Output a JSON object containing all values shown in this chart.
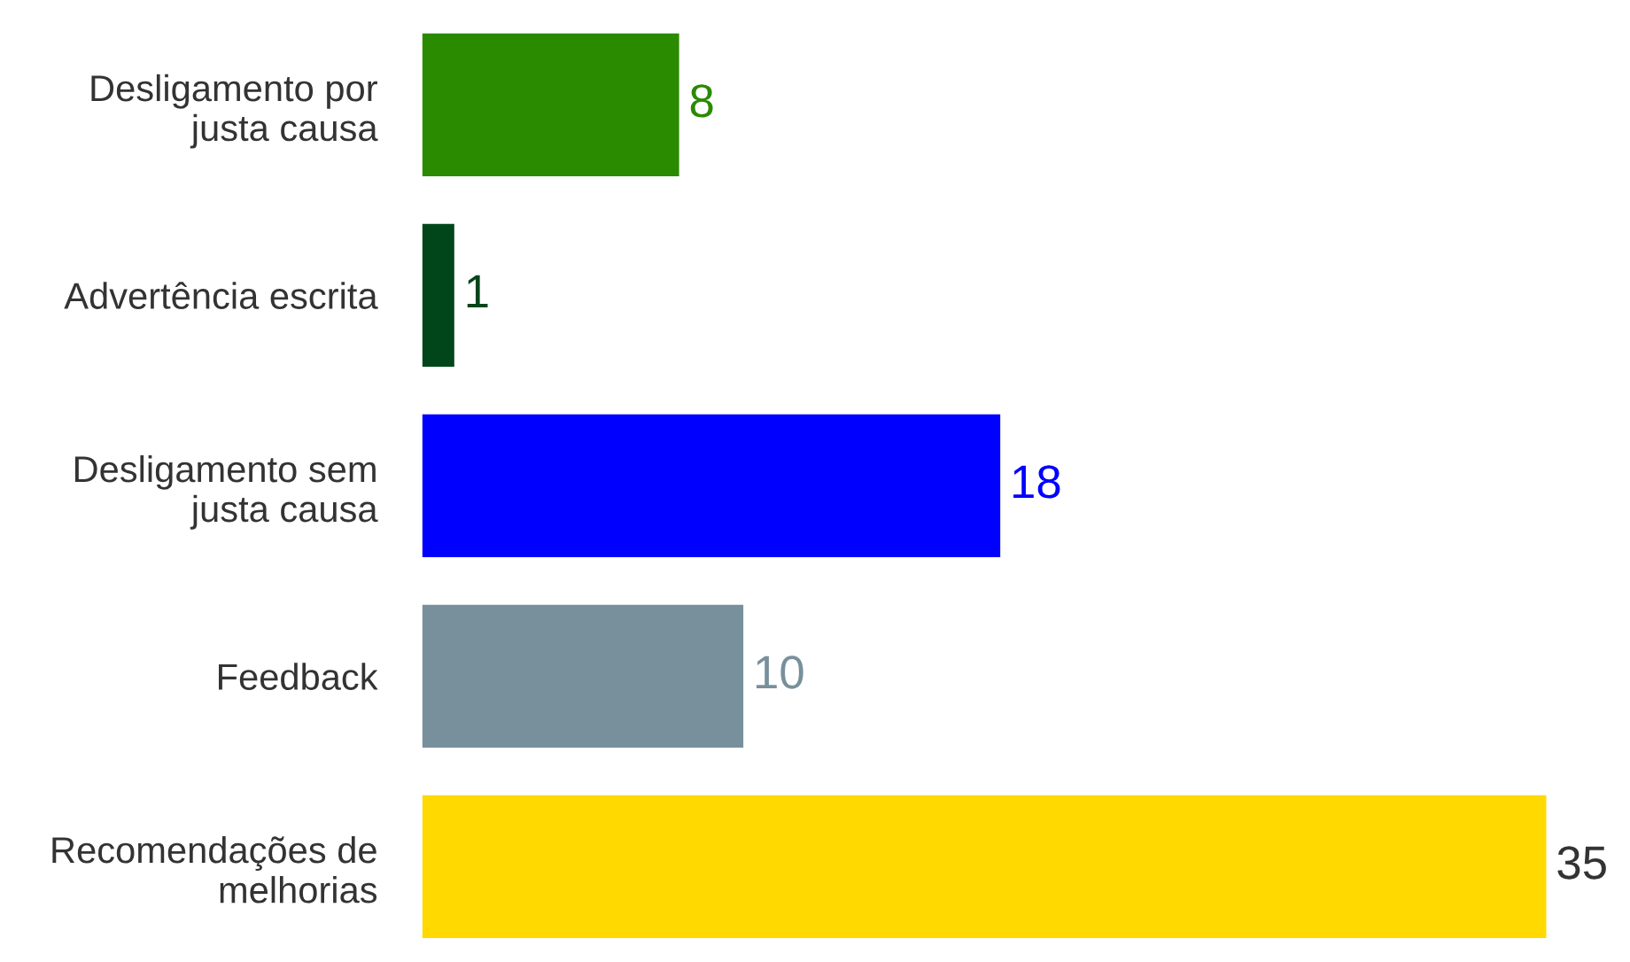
{
  "chart_data": {
    "type": "bar",
    "orientation": "horizontal",
    "categories": [
      "Desligamento por justa causa",
      "Advertência escrita",
      "Desligamento sem justa causa",
      "Feedback",
      "Recomendações de melhorias"
    ],
    "values": [
      8,
      1,
      18,
      10,
      35
    ],
    "colors": [
      "#2a8a00",
      "#00461a",
      "#0000ff",
      "#78909c",
      "#ffd900"
    ],
    "data_labels": true,
    "grid": false,
    "legend": false
  }
}
